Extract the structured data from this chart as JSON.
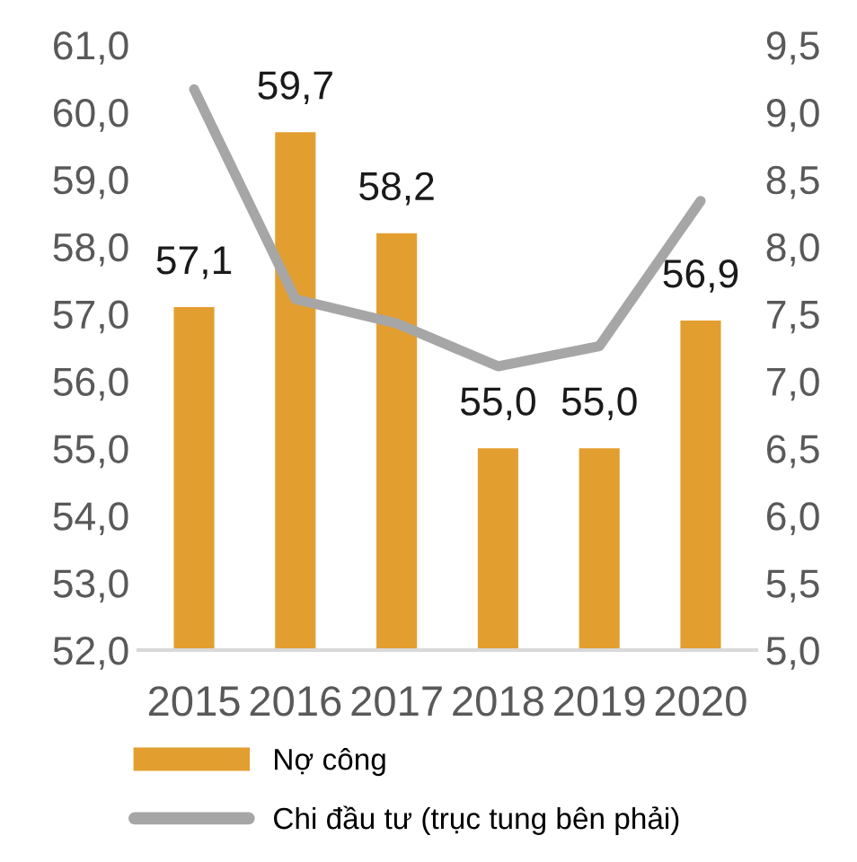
{
  "chart_data": {
    "type": "bar",
    "categories": [
      "2015",
      "2016",
      "2017",
      "2018",
      "2019",
      "2020"
    ],
    "series": [
      {
        "name": "Nợ công",
        "color": "#e39e30",
        "values": [
          57.1,
          59.7,
          58.2,
          55.0,
          55.0,
          56.9
        ],
        "value_labels": [
          "57,1",
          "59,7",
          "58,2",
          "55,0",
          "55,0",
          "56,9"
        ]
      },
      {
        "name": "Chi đầu tư (trục tung bên phải)",
        "type": "line",
        "axis": "y2",
        "color": "#a6a6a6",
        "values": [
          9.17,
          7.61,
          7.43,
          7.11,
          7.26,
          8.34
        ]
      }
    ],
    "ylim": [
      52,
      61
    ],
    "yticks": [
      {
        "value": 52,
        "label": "52,0"
      },
      {
        "value": 53,
        "label": "53,0"
      },
      {
        "value": 54,
        "label": "54,0"
      },
      {
        "value": 55,
        "label": "55,0"
      },
      {
        "value": 56,
        "label": "56,0"
      },
      {
        "value": 57,
        "label": "57,0"
      },
      {
        "value": 58,
        "label": "58,0"
      },
      {
        "value": 59,
        "label": "59,0"
      },
      {
        "value": 60,
        "label": "60,0"
      },
      {
        "value": 61,
        "label": "61,0"
      }
    ],
    "y2lim": [
      5,
      9.5
    ],
    "y2ticks": [
      {
        "value": 5,
        "label": "5,0"
      },
      {
        "value": 5.5,
        "label": "5,5"
      },
      {
        "value": 6,
        "label": "6,0"
      },
      {
        "value": 6.5,
        "label": "6,5"
      },
      {
        "value": 7,
        "label": "7,0"
      },
      {
        "value": 7.5,
        "label": "7,5"
      },
      {
        "value": 8,
        "label": "8,0"
      },
      {
        "value": 8.5,
        "label": "8,5"
      },
      {
        "value": 9,
        "label": "9,0"
      },
      {
        "value": 9.5,
        "label": "9,5"
      }
    ],
    "grid": false,
    "legend": "bottom",
    "marker": "none",
    "line_style": "solid"
  }
}
